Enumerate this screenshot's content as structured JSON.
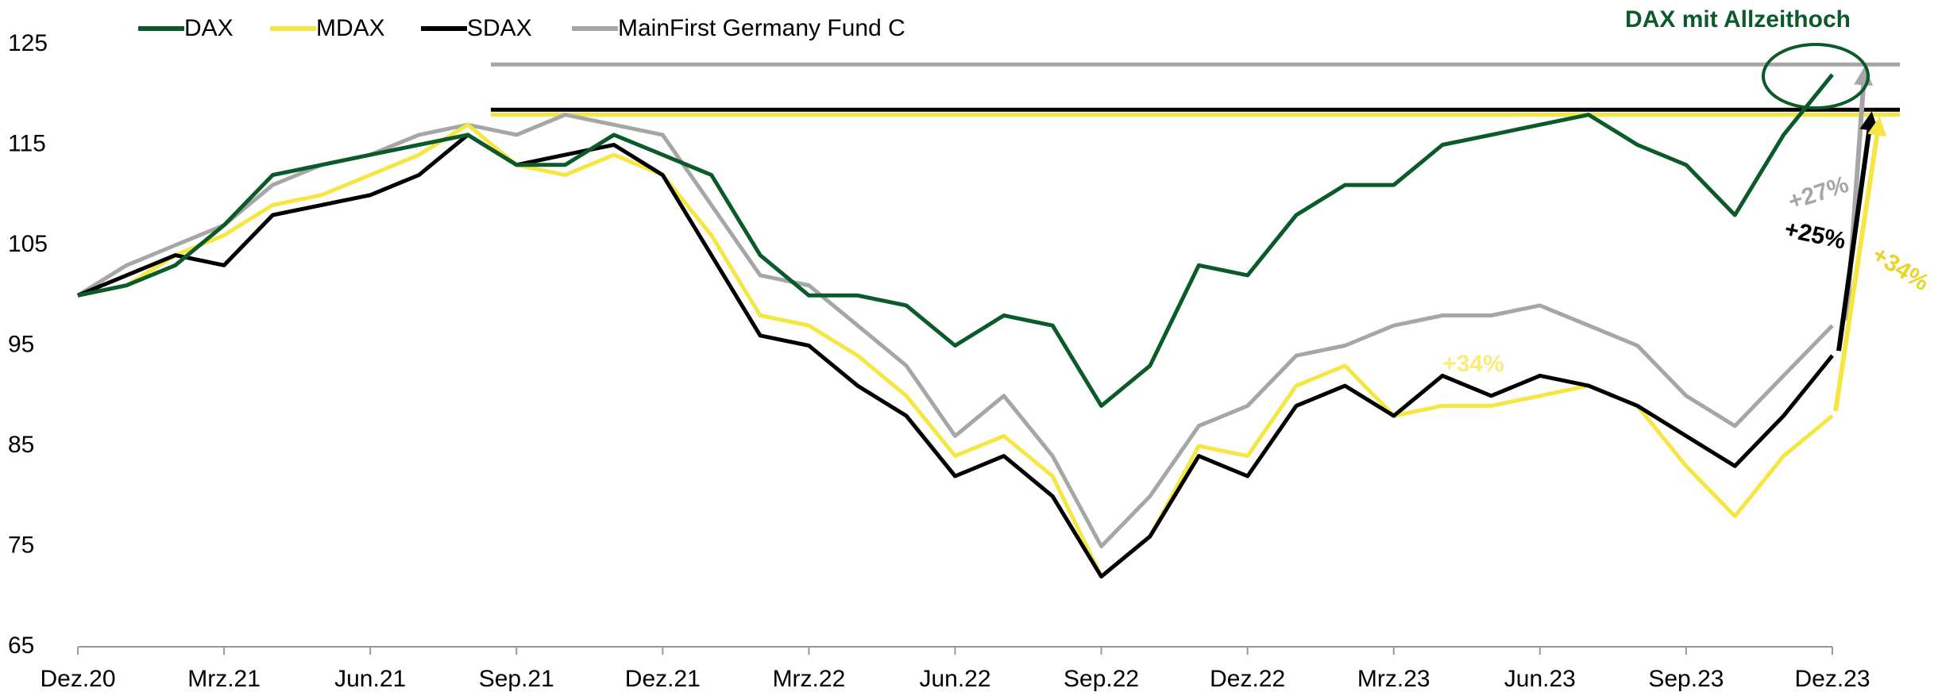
{
  "chart_data": {
    "type": "line",
    "categories": [
      "Dez.20",
      null,
      null,
      "Mrz.21",
      null,
      null,
      "Jun.21",
      null,
      null,
      "Sep.21",
      null,
      null,
      "Dez.21",
      null,
      null,
      "Mrz.22",
      null,
      null,
      "Jun.22",
      null,
      null,
      "Sep.22",
      null,
      null,
      "Dez.22",
      null,
      null,
      "Mrz.23",
      null,
      null,
      "Jun.23",
      null,
      null,
      "Sep.23",
      null,
      null,
      "Dez.23"
    ],
    "series": [
      {
        "name": "DAX",
        "color": "#0b5a2a",
        "values": [
          100,
          101,
          103,
          107,
          112,
          113,
          114,
          115,
          116,
          113,
          113,
          116,
          114,
          112,
          104,
          100,
          100,
          99,
          95,
          98,
          97,
          89,
          93,
          103,
          102,
          108,
          111,
          111,
          115,
          116,
          117,
          118,
          115,
          113,
          108,
          116,
          122
        ]
      },
      {
        "name": "MDAX",
        "color": "#f5e642",
        "values": [
          100,
          101,
          104,
          106,
          109,
          110,
          112,
          114,
          117,
          113,
          112,
          114,
          112,
          106,
          98,
          97,
          94,
          90,
          84,
          86,
          82,
          72,
          76,
          85,
          84,
          91,
          93,
          88,
          89,
          89,
          90,
          91,
          89,
          83,
          78,
          84,
          88
        ]
      },
      {
        "name": "SDAX",
        "color": "#000000",
        "values": [
          100,
          102,
          104,
          103,
          108,
          109,
          110,
          112,
          116,
          113,
          114,
          115,
          112,
          104,
          96,
          95,
          91,
          88,
          82,
          84,
          80,
          72,
          76,
          84,
          82,
          89,
          91,
          88,
          92,
          90,
          92,
          91,
          89,
          86,
          83,
          88,
          94
        ]
      },
      {
        "name": "MainFirst Germany Fund C",
        "color": "#a6a6a6",
        "values": [
          100,
          103,
          105,
          107,
          111,
          113,
          114,
          116,
          117,
          116,
          118,
          117,
          116,
          109,
          102,
          101,
          97,
          93,
          86,
          90,
          84,
          75,
          80,
          87,
          89,
          94,
          95,
          97,
          98,
          98,
          99,
          97,
          95,
          90,
          87,
          92,
          97
        ]
      }
    ],
    "reference_lines": [
      {
        "color": "#a6a6a6",
        "value": 123
      },
      {
        "color": "#000000",
        "value": 118.5
      },
      {
        "color": "#f5e642",
        "value": 118
      }
    ],
    "ylim": [
      65,
      125
    ],
    "yticks": [
      65,
      75,
      85,
      95,
      105,
      115,
      125
    ],
    "annotations": [
      {
        "text": "DAX mit Allzeithoch",
        "color": "#0b5a2a"
      },
      {
        "text": "+27%",
        "color": "#a6a6a6"
      },
      {
        "text": "+25%",
        "color": "#000000"
      },
      {
        "text": "+34%",
        "color": "#e8d52a"
      },
      {
        "text": "+34%",
        "color": "#f5e642"
      }
    ]
  }
}
